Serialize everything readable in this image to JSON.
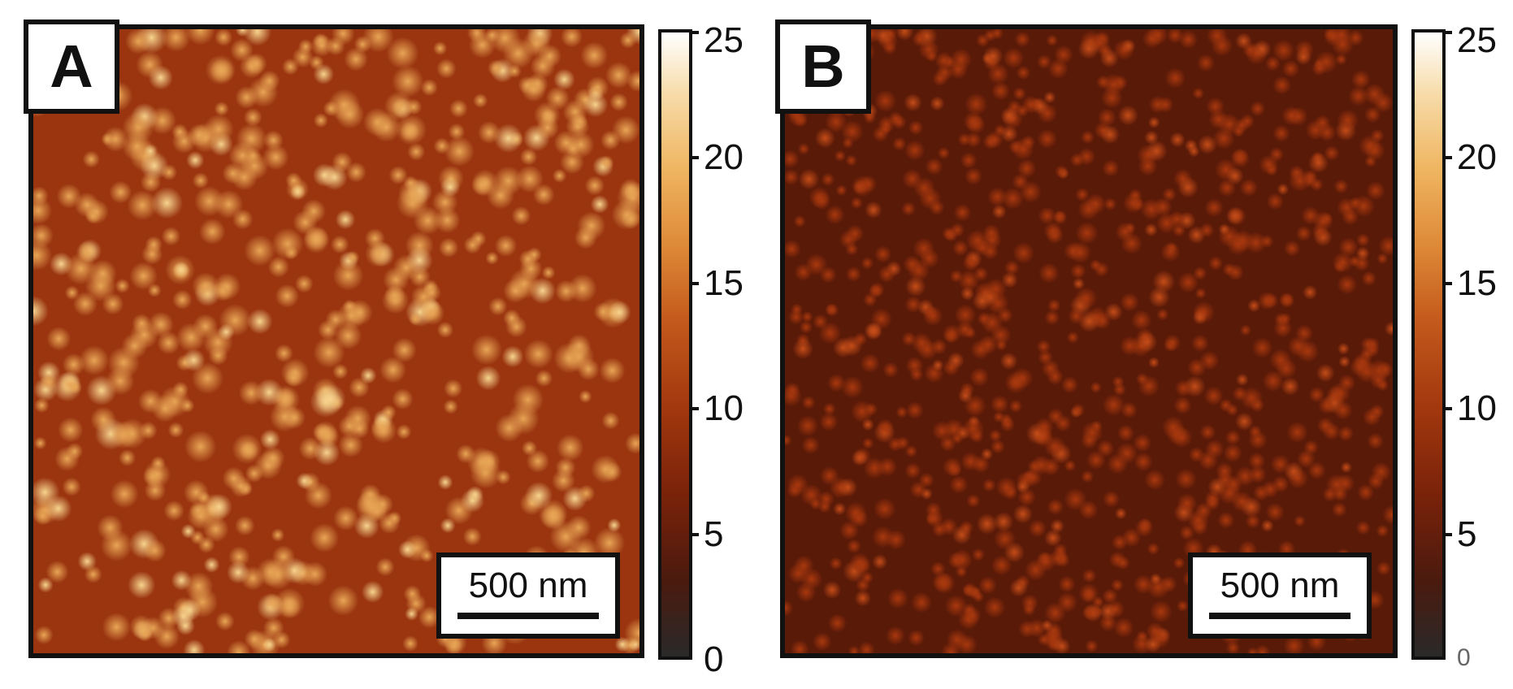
{
  "panels": [
    {
      "label": "A",
      "scalebar_text": "500 nm",
      "colorbar": {
        "min": 0,
        "max": 25,
        "ticks": [
          "0",
          "5",
          "10",
          "15",
          "20",
          "25"
        ],
        "gradient_colors": [
          "#2a2a2a",
          "#7a220a",
          "#c45a1c",
          "#efb560",
          "#ffffff"
        ]
      },
      "image": {
        "description_colors": {
          "background": "#9a3510",
          "grain": "#e8a555"
        }
      }
    },
    {
      "label": "B",
      "scalebar_text": "500 nm",
      "colorbar": {
        "min": 0,
        "max": 25,
        "ticks": [
          "0",
          "5",
          "10",
          "15",
          "20",
          "25"
        ],
        "gradient_colors": [
          "#2a2a2a",
          "#7a220a",
          "#c45a1c",
          "#efb560",
          "#ffffff"
        ]
      },
      "image": {
        "description_colors": {
          "background": "#5a1a08",
          "grain": "#a8380e"
        }
      }
    }
  ]
}
